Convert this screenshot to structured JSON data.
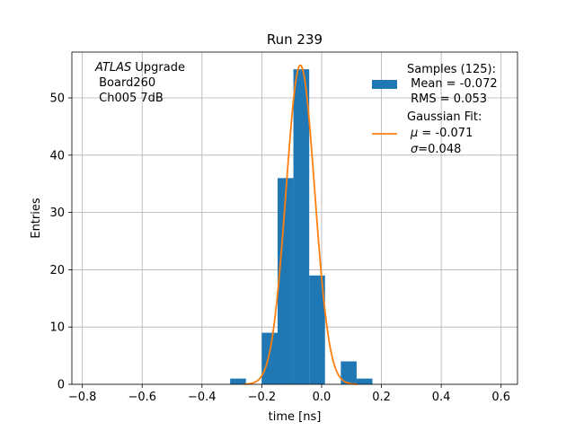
{
  "chart_data": {
    "type": "bar",
    "title": "Run 239",
    "xlabel": "time [ns]",
    "ylabel": "Entries",
    "xlim": [
      -0.835,
      0.655
    ],
    "ylim": [
      0,
      58
    ],
    "xticks": [
      -0.8,
      -0.6,
      -0.4,
      -0.2,
      0.0,
      0.2,
      0.4,
      0.6
    ],
    "xtick_labels": [
      "−0.8",
      "−0.6",
      "−0.4",
      "−0.2",
      "0.0",
      "0.2",
      "0.4",
      "0.6"
    ],
    "yticks": [
      0,
      10,
      20,
      30,
      40,
      50
    ],
    "yticklabels": [
      "0",
      "10",
      "20",
      "30",
      "40",
      "50"
    ],
    "grid": true,
    "legend_position": "top-right",
    "histogram": {
      "name": "Samples (125):",
      "color": "#1f77b4",
      "bins": [
        {
          "x0": -0.3058,
          "x1": -0.2529,
          "count": 1
        },
        {
          "x0": -0.2529,
          "x1": -0.2,
          "count": 0
        },
        {
          "x0": -0.2,
          "x1": -0.1471,
          "count": 9
        },
        {
          "x0": -0.1471,
          "x1": -0.0943,
          "count": 36
        },
        {
          "x0": -0.0943,
          "x1": -0.0414,
          "count": 55
        },
        {
          "x0": -0.0414,
          "x1": 0.0114,
          "count": 19
        },
        {
          "x0": 0.0114,
          "x1": 0.0643,
          "count": 0
        },
        {
          "x0": 0.0643,
          "x1": 0.1171,
          "count": 4
        },
        {
          "x0": 0.1171,
          "x1": 0.17,
          "count": 1
        }
      ]
    },
    "fit": {
      "type": "gaussian",
      "color": "#ff7f0e",
      "mu": -0.071,
      "sigma": 0.048,
      "amplitude": 55.7,
      "x_range": [
        -0.26,
        0.12
      ]
    },
    "legend": {
      "samples": {
        "title": "Samples (125):",
        "mean": " Mean = -0.072",
        "rms": " RMS = 0.053"
      },
      "fit": {
        "title": "Gaussian Fit:",
        "mu_symbol": "μ",
        "mu_text": " = -0.071",
        "sigma_symbol": "σ",
        "sigma_text": "=0.048"
      }
    },
    "annotation": {
      "atlas": "ATLAS",
      "atlas_suffix": " Upgrade",
      "line2": " Board260",
      "line3": " Ch005 7dB"
    }
  }
}
